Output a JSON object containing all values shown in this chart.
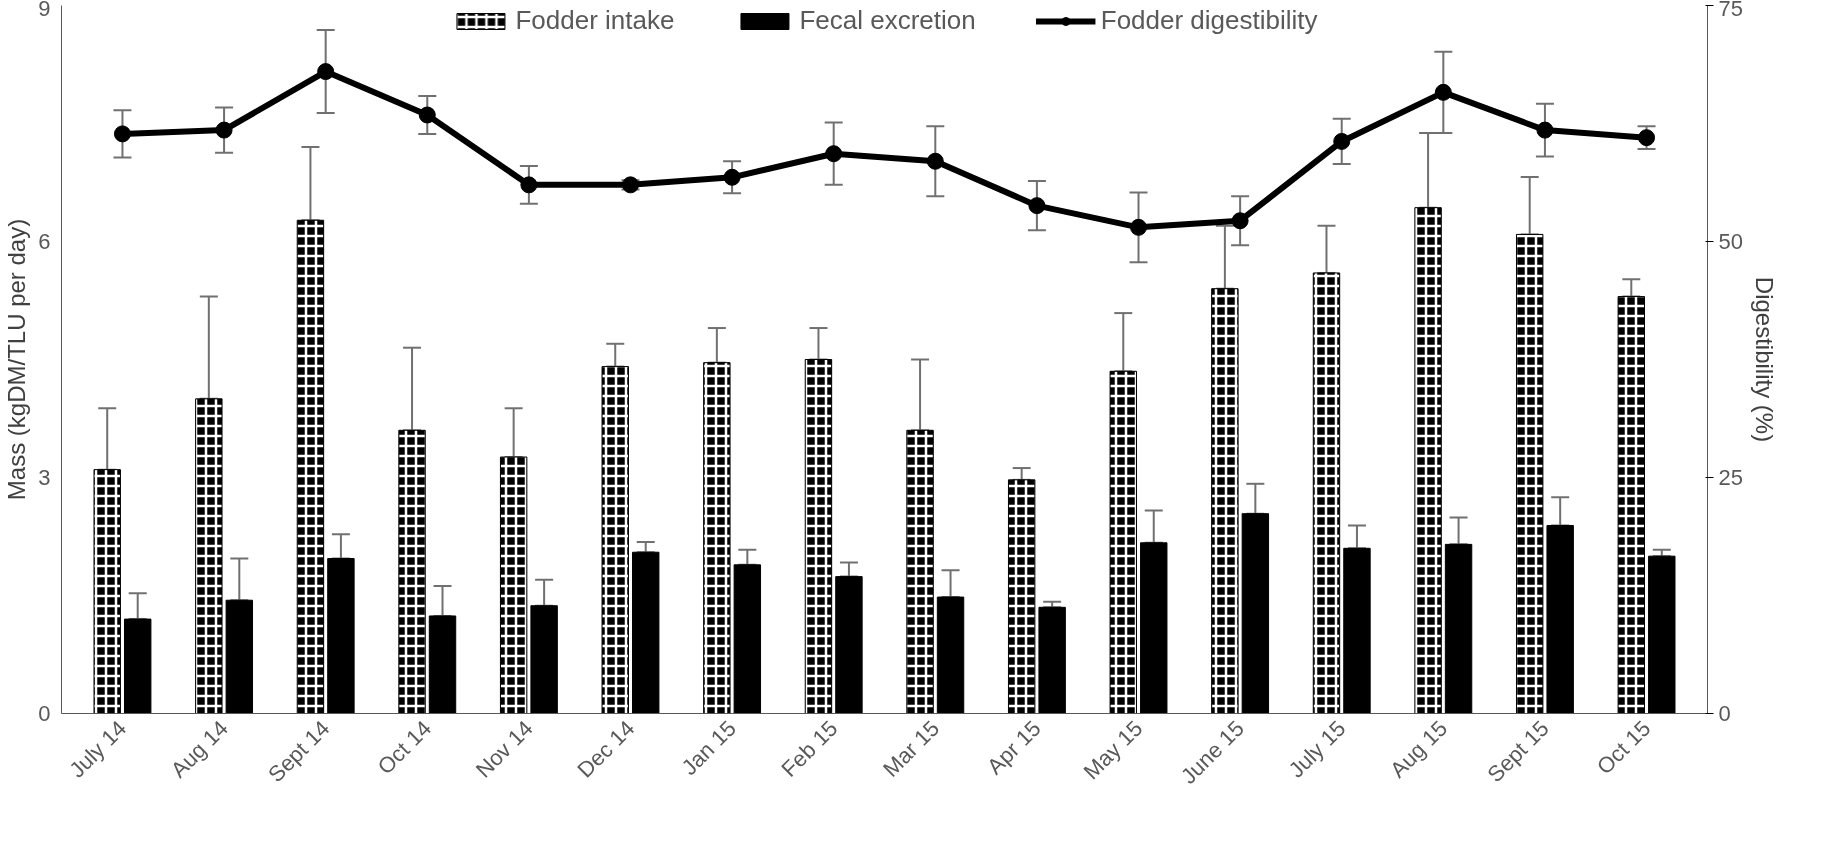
{
  "chart_data": {
    "type": "bar",
    "categories": [
      "July 14",
      "Aug 14",
      "Sept 14",
      "Oct 14",
      "Nov 14",
      "Dec 14",
      "Jan 15",
      "Feb 15",
      "Mar 15",
      "Apr 15",
      "May 15",
      "June 15",
      "July 15",
      "Aug 15",
      "Sept 15",
      "Oct 15"
    ],
    "series": [
      {
        "name": "Fodder intake",
        "color": "#000000",
        "values": [
          3.1,
          4.0,
          6.27,
          3.6,
          3.26,
          4.41,
          4.46,
          4.5,
          3.6,
          2.97,
          4.35,
          5.4,
          5.6,
          6.43,
          6.09,
          5.3
        ],
        "errors": [
          [
            3.1,
            3.88
          ],
          [
            4.0,
            5.3
          ],
          [
            6.27,
            7.2
          ],
          [
            3.6,
            4.65
          ],
          [
            3.26,
            3.88
          ],
          [
            4.41,
            4.7
          ],
          [
            4.46,
            4.9
          ],
          [
            4.5,
            4.9
          ],
          [
            3.6,
            4.5
          ],
          [
            2.97,
            3.12
          ],
          [
            4.35,
            5.09
          ],
          [
            5.4,
            6.2
          ],
          [
            5.6,
            6.2
          ],
          [
            6.43,
            7.38
          ],
          [
            6.09,
            6.82
          ],
          [
            5.3,
            5.52
          ]
        ]
      },
      {
        "name": "Fecal excretion",
        "color": "#000000",
        "values": [
          1.2,
          1.44,
          1.97,
          1.24,
          1.37,
          2.05,
          1.89,
          1.74,
          1.48,
          1.35,
          2.17,
          2.54,
          2.1,
          2.15,
          2.39,
          2.0
        ],
        "errors": [
          [
            1.2,
            1.53
          ],
          [
            1.44,
            1.97
          ],
          [
            1.97,
            2.28
          ],
          [
            1.24,
            1.62
          ],
          [
            1.37,
            1.7
          ],
          [
            2.05,
            2.18
          ],
          [
            1.89,
            2.08
          ],
          [
            1.74,
            1.92
          ],
          [
            1.48,
            1.82
          ],
          [
            1.35,
            1.42
          ],
          [
            2.17,
            2.58
          ],
          [
            2.54,
            2.92
          ],
          [
            2.1,
            2.39
          ],
          [
            2.15,
            2.49
          ],
          [
            2.39,
            2.75
          ],
          [
            2.0,
            2.08
          ]
        ]
      },
      {
        "name": "Fodder digestibility",
        "type": "line",
        "axis": "y2",
        "color": "#000000",
        "marker": "circle",
        "values": [
          61.4,
          61.8,
          68.0,
          63.4,
          56.0,
          56.0,
          56.8,
          59.3,
          58.5,
          53.8,
          51.5,
          52.2,
          60.6,
          65.8,
          61.8,
          61.0
        ],
        "errors": [
          2.5,
          2.4,
          4.4,
          2.0,
          2.0,
          0.5,
          1.7,
          3.3,
          3.7,
          2.6,
          3.7,
          2.6,
          2.4,
          4.3,
          2.8,
          1.2
        ]
      }
    ],
    "ylabel": "Mass (kgDM/TLU per day)",
    "y2label": "Digestibility (%)",
    "ylim": [
      0,
      9
    ],
    "yticks": [
      0,
      3,
      6,
      9
    ],
    "y2lim": [
      0,
      75
    ],
    "y2ticks": [
      0,
      25,
      50,
      75
    ],
    "grid": false,
    "legend": "top"
  }
}
